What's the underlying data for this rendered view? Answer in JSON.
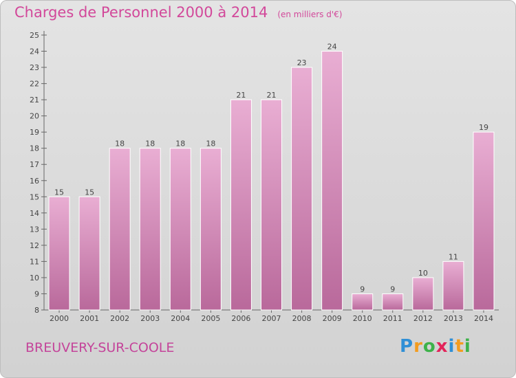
{
  "header": {
    "title": "Charges de Personnel 2000 à 2014",
    "unit": "(en milliers d'€)"
  },
  "footer": {
    "location": "BREUVERY-SUR-COOLE",
    "brand_letters": [
      "P",
      "r",
      "o",
      "x",
      "i",
      "t",
      "i"
    ],
    "brand_colors": [
      "#2f8fd6",
      "#f39c1f",
      "#3db24a",
      "#e3245a",
      "#2f8fd6",
      "#f39c1f",
      "#3db24a"
    ]
  },
  "colors": {
    "bar_top": "#e9aed3",
    "bar_bottom": "#b9699b",
    "bar_stroke": "#ffffff",
    "text": "#444444",
    "title": "#d2489a"
  },
  "chart_data": {
    "type": "bar",
    "categories": [
      "2000",
      "2001",
      "2002",
      "2003",
      "2004",
      "2005",
      "2006",
      "2007",
      "2008",
      "2009",
      "2010",
      "2011",
      "2012",
      "2013",
      "2014"
    ],
    "values": [
      15,
      15,
      18,
      18,
      18,
      18,
      21,
      21,
      23,
      24,
      9,
      9,
      10,
      11,
      19
    ],
    "data_labels": [
      "15",
      "15",
      "18",
      "18",
      "18",
      "18",
      "21",
      "21",
      "23",
      "24",
      "9",
      "9",
      "10",
      "11",
      "19"
    ],
    "yticks": [
      "8",
      "9",
      "10",
      "11",
      "12",
      "13",
      "14",
      "15",
      "16",
      "17",
      "18",
      "19",
      "20",
      "21",
      "22",
      "23",
      "24",
      "25"
    ],
    "ylim": [
      8,
      25
    ],
    "grid": false,
    "legend": "none"
  }
}
